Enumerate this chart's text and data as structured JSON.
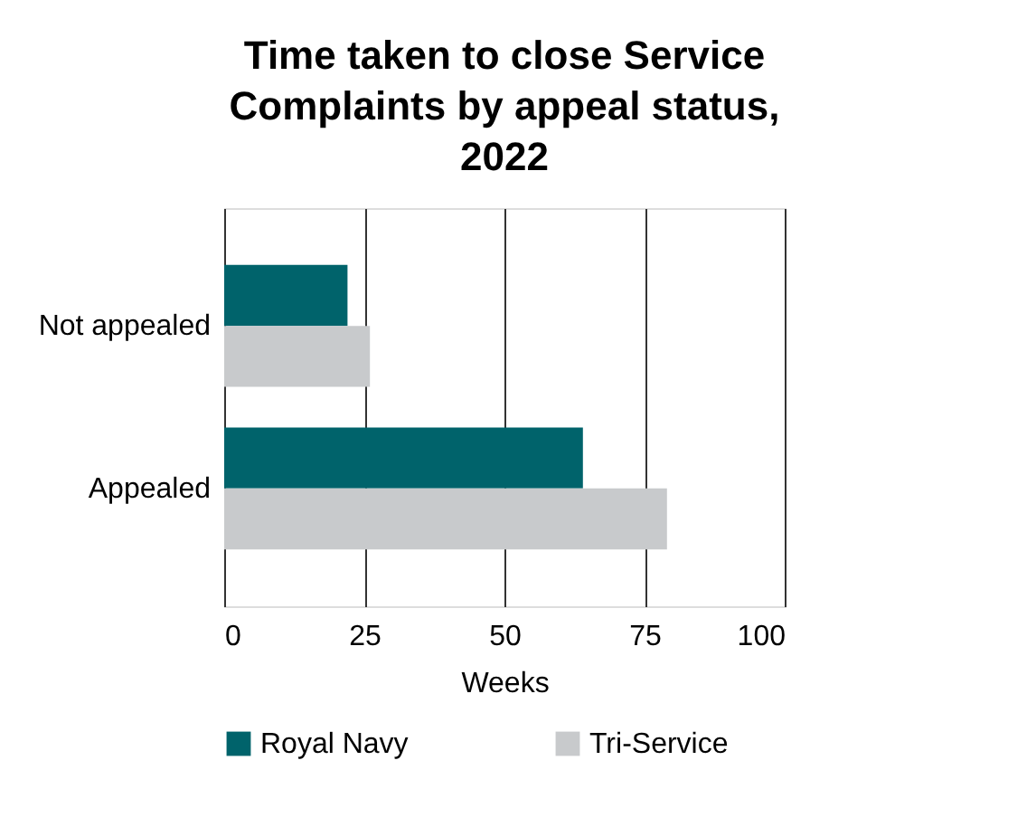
{
  "chart_data": {
    "type": "bar",
    "orientation": "horizontal",
    "title": "Time taken to close Service Complaints by appeal status, 2022",
    "categories": [
      "Not appealed",
      "Appealed"
    ],
    "series": [
      {
        "name": "Royal Navy",
        "color": "#00636b",
        "values": [
          22,
          64
        ]
      },
      {
        "name": "Tri-Service",
        "color": "#c8cacc",
        "values": [
          26,
          79
        ]
      }
    ],
    "xlabel": "Weeks",
    "xlim": [
      0,
      100
    ],
    "xticks": [
      0,
      25,
      50,
      75,
      100
    ],
    "grid": "x",
    "legend": "bottom"
  }
}
